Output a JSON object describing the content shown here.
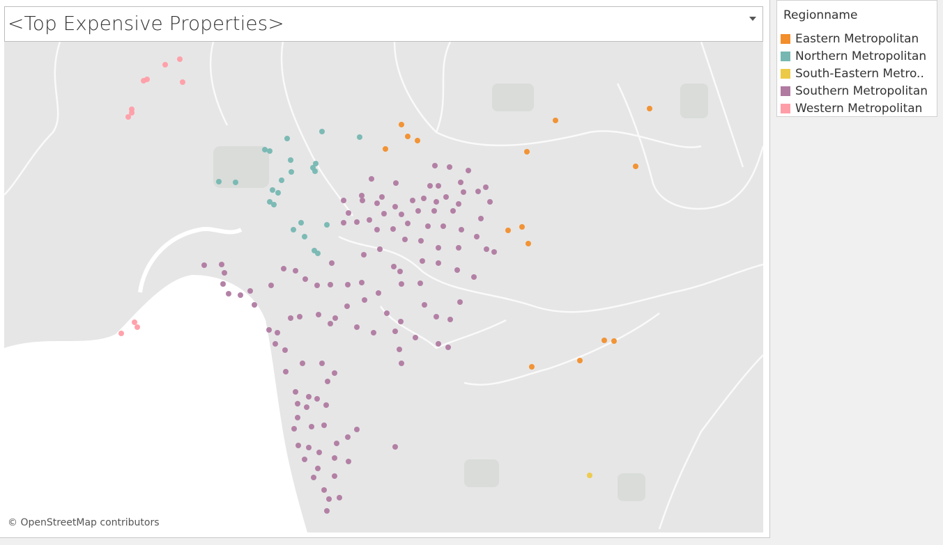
{
  "title": "<Top Expensive Properties>",
  "attribution": "© OpenStreetMap contributors",
  "legend": {
    "title": "Regionname"
  },
  "map": {
    "type": "scatter",
    "lon_range": [
      144.7396,
      145.393
    ],
    "lat_range": [
      -37.62,
      -37.9725
    ],
    "series": [
      {
        "name": "Eastern Metropolitan",
        "color": "#f28e2b",
        "lon": [
          145.0816,
          145.087,
          145.0954,
          145.0678,
          145.2142,
          145.1896,
          145.2952,
          145.2832,
          145.1734,
          145.1854,
          145.1908,
          145.2562,
          145.2646,
          145.2352,
          145.1938
        ],
        "lat": [
          -37.6795,
          -37.688,
          -37.691,
          -37.697,
          -37.6765,
          -37.699,
          -37.668,
          -37.7095,
          -37.7555,
          -37.753,
          -37.765,
          -37.8345,
          -37.835,
          -37.849,
          -37.8535
        ]
      },
      {
        "name": "Northern Metropolitan",
        "color": "#76b7b2",
        "lon": [
          144.9832,
          145.0132,
          145.0456,
          144.964,
          144.9682,
          144.9862,
          145.0078,
          144.9868,
          145.0054,
          145.0072,
          144.9784,
          144.9244,
          144.9388,
          144.9706,
          144.9754,
          144.9682,
          144.9718,
          144.9952,
          145.0174,
          144.9886,
          144.9982,
          145.0066,
          145.0096
        ],
        "lat": [
          -37.6895,
          -37.6845,
          -37.6885,
          -37.6975,
          -37.6985,
          -37.705,
          -37.7075,
          -37.7135,
          -37.7105,
          -37.713,
          -37.7195,
          -37.7205,
          -37.721,
          -37.7265,
          -37.7285,
          -37.735,
          -37.737,
          -37.75,
          -37.7515,
          -37.755,
          -37.76,
          -37.77,
          -37.772
        ]
      },
      {
        "name": "South-Eastern Metro..",
        "color": "#edc948",
        "lon": [
          145.2436
        ],
        "lat": [
          -37.9315
        ]
      },
      {
        "name": "Southern Metropolitan",
        "color": "#b07aa1",
        "lon": [
          145.1104,
          145.123,
          145.1392,
          145.0558,
          145.0768,
          145.1326,
          145.1134,
          145.1062,
          145.1542,
          145.0474,
          145.0648,
          145.1008,
          145.12,
          145.135,
          145.1476,
          145.0318,
          145.048,
          145.0606,
          145.0762,
          145.0912,
          145.1116,
          145.1308,
          145.1578,
          145.036,
          145.0432,
          145.054,
          145.0666,
          145.0816,
          145.096,
          145.1098,
          145.126,
          145.15,
          145.0318,
          145.0606,
          145.0744,
          145.087,
          145.1044,
          145.1176,
          145.1332,
          145.1464,
          145.0846,
          145.0984,
          145.1134,
          145.1308,
          145.1548,
          145.1614,
          145.0492,
          145.063,
          145.1134,
          145.0996,
          144.9118,
          144.9268,
          144.9292,
          144.9802,
          144.9904,
          145.0216,
          145.075,
          145.0804,
          145.1296,
          145.144,
          144.928,
          144.9328,
          144.943,
          144.9514,
          144.955,
          144.9694,
          144.9988,
          145.009,
          145.0204,
          145.0354,
          145.0474,
          145.0816,
          145.0978,
          145.1014,
          145.132,
          144.9862,
          144.994,
          145.0102,
          145.0246,
          145.0348,
          145.0498,
          145.0618,
          145.069,
          145.081,
          145.1116,
          145.1236,
          144.9676,
          144.9748,
          144.973,
          144.9814,
          145.0204,
          145.0432,
          145.0576,
          145.0762,
          145.0936,
          145.1134,
          145.1218,
          145.0798,
          145.0816,
          144.9964,
          145.0132,
          145.024,
          144.982,
          145.018,
          144.9904,
          145.0018,
          145.009,
          144.9922,
          145.0,
          145.0168,
          144.9922,
          144.9892,
          145.0042,
          145.015,
          145.0432,
          145.0354,
          145.0258,
          144.9928,
          145.0018,
          145.0108,
          144.9982,
          145.024,
          145.036,
          145.0762,
          145.006,
          145.015,
          145.024,
          145.0282,
          145.0192,
          145.0174,
          145.0096
        ],
        "lat": [
          -37.709,
          -37.71,
          -37.7125,
          -37.7185,
          -37.7215,
          -37.721,
          -37.7235,
          -37.7235,
          -37.7245,
          -37.7305,
          -37.7315,
          -37.7325,
          -37.7315,
          -37.728,
          -37.7275,
          -37.734,
          -37.734,
          -37.736,
          -37.7385,
          -37.734,
          -37.735,
          -37.7365,
          -37.735,
          -37.743,
          -37.7495,
          -37.748,
          -37.7435,
          -37.744,
          -37.7415,
          -37.7415,
          -37.7415,
          -37.747,
          -37.75,
          -37.755,
          -37.7545,
          -37.7505,
          -37.7525,
          -37.7525,
          -37.755,
          -37.76,
          -37.762,
          -37.763,
          -37.768,
          -37.768,
          -37.769,
          -37.771,
          -37.773,
          -37.769,
          -37.779,
          -37.7775,
          -37.7805,
          -37.78,
          -37.786,
          -37.783,
          -37.7845,
          -37.779,
          -37.7815,
          -37.785,
          -37.784,
          -37.789,
          -37.794,
          -37.801,
          -37.802,
          -37.799,
          -37.809,
          -37.795,
          -37.7905,
          -37.795,
          -37.7945,
          -37.7945,
          -37.793,
          -37.794,
          -37.7935,
          -37.809,
          -37.807,
          -37.8185,
          -37.8175,
          -37.816,
          -37.8185,
          -37.81,
          -37.8055,
          -37.8005,
          -37.815,
          -37.821,
          -37.8175,
          -37.8195,
          -37.827,
          -37.829,
          -37.837,
          -37.8415,
          -37.8225,
          -37.825,
          -37.829,
          -37.828,
          -37.8325,
          -37.837,
          -37.8395,
          -37.841,
          -37.851,
          -37.851,
          -37.851,
          -37.858,
          -37.857,
          -37.864,
          -37.8715,
          -37.875,
          -37.8765,
          -37.88,
          -37.8825,
          -37.881,
          -37.89,
          -37.898,
          -37.8965,
          -37.8955,
          -37.8985,
          -37.904,
          -37.9085,
          -37.91,
          -37.9115,
          -37.915,
          -37.92,
          -37.919,
          -37.9215,
          -37.911,
          -37.933,
          -37.942,
          -37.932,
          -37.9475,
          -37.9485,
          -37.957,
          -37.9265
        ]
      },
      {
        "name": "Western Metropolitan",
        "color": "#ff9da7",
        "lon": [
          144.8782,
          144.8908,
          144.8932,
          144.8596,
          144.8626,
          144.8494,
          144.8494,
          144.8464,
          144.8518,
          144.8542,
          144.8404
        ],
        "lat": [
          -37.6365,
          -37.6325,
          -37.649,
          -37.648,
          -37.647,
          -37.6685,
          -37.671,
          -37.674,
          -37.8215,
          -37.825,
          -37.8295
        ]
      }
    ]
  }
}
